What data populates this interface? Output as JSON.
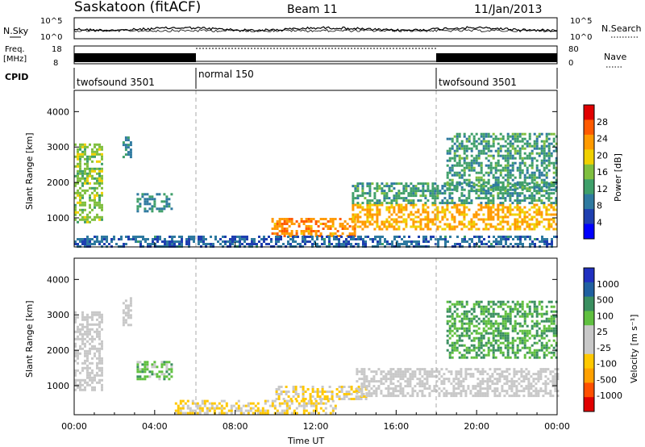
{
  "header": {
    "station": "Saskatoon (fitACF)",
    "beam": "Beam 11",
    "date": "11/Jan/2013"
  },
  "nsky_panel": {
    "left_label": "N.Sky",
    "right_label": "N.Search",
    "left_ticks": [
      "10^5",
      "10^0"
    ],
    "right_ticks": [
      "10^5",
      "10^0"
    ]
  },
  "freq_panel": {
    "left_label_line1": "Freq.",
    "left_label_line2": "[MHz]",
    "right_label": "Nave",
    "left_ticks": [
      "18",
      "8"
    ],
    "right_ticks": [
      "80",
      "0"
    ]
  },
  "cpid": {
    "label": "CPID",
    "segments": [
      {
        "name": "twofsound 3501",
        "start_h": 0,
        "end_h": 6
      },
      {
        "name": "normal 150",
        "start_h": 6,
        "end_h": 18
      },
      {
        "name": "twofsound 3501",
        "start_h": 18,
        "end_h": 24
      }
    ]
  },
  "power_panel": {
    "ylabel": "Slant Range [km]",
    "yticks": [
      "4000",
      "3000",
      "2000",
      "1000"
    ],
    "colorbar_label": "Power [dB]",
    "colorbar_ticks": [
      "28",
      "24",
      "20",
      "16",
      "12",
      "8",
      "4"
    ]
  },
  "velocity_panel": {
    "ylabel": "Slant Range [km]",
    "yticks": [
      "4000",
      "3000",
      "2000",
      "1000"
    ],
    "colorbar_label": "Velocity [m s⁻¹]",
    "colorbar_ticks": [
      "1000",
      "500",
      "100",
      "25",
      "-25",
      "-100",
      "-500",
      "-1000"
    ]
  },
  "xaxis": {
    "label": "Time UT",
    "ticks": [
      "00:00",
      "04:00",
      "08:00",
      "12:00",
      "16:00",
      "20:00",
      "00:00"
    ]
  },
  "colors": {
    "power_scale": [
      "#0000ff",
      "#1f3fb0",
      "#2f7aa0",
      "#3f9f6a",
      "#7fbf3f",
      "#f0d000",
      "#ff9a00",
      "#ff5a00",
      "#e00000"
    ],
    "velocity_scale": [
      "#e00000",
      "#ff5000",
      "#ffa000",
      "#ffc800",
      "#c8c8c8",
      "#c8c8c8",
      "#60c040",
      "#3a8f60",
      "#2060a0",
      "#2030c0"
    ]
  },
  "chart_data": [
    {
      "type": "heatmap",
      "title": "Power",
      "xlabel": "Time UT",
      "ylabel": "Slant Range [km]",
      "xlim": [
        0,
        24
      ],
      "ylim": [
        180,
        4600
      ],
      "zlabel": "Power [dB]",
      "zlim": [
        0,
        32
      ],
      "regions": [
        {
          "t0": 0.0,
          "t1": 1.4,
          "r0": 900,
          "r1": 3100,
          "level": 16
        },
        {
          "t0": 2.4,
          "t1": 2.8,
          "r0": 2700,
          "r1": 3300,
          "level": 10
        },
        {
          "t0": 3.1,
          "t1": 4.9,
          "r0": 1200,
          "r1": 1700,
          "level": 10
        },
        {
          "t0": 9.8,
          "t1": 14.0,
          "r0": 500,
          "r1": 1000,
          "level": 24
        },
        {
          "t0": 13.8,
          "t1": 24.0,
          "r0": 700,
          "r1": 1400,
          "level": 22
        },
        {
          "t0": 13.8,
          "t1": 24.0,
          "r0": 1400,
          "r1": 2000,
          "level": 12
        },
        {
          "t0": 18.5,
          "t1": 24.0,
          "r0": 1800,
          "r1": 3400,
          "level": 12
        },
        {
          "t0": 0.0,
          "t1": 24.0,
          "r0": 200,
          "r1": 500,
          "level": 8
        }
      ]
    },
    {
      "type": "heatmap",
      "title": "Velocity",
      "xlabel": "Time UT",
      "ylabel": "Slant Range [km]",
      "xlim": [
        0,
        24
      ],
      "ylim": [
        180,
        4600
      ],
      "zlabel": "Velocity [m s⁻¹]",
      "zlim": [
        -1000,
        1000
      ],
      "regions": [
        {
          "t0": 0.0,
          "t1": 1.4,
          "r0": 900,
          "r1": 3100,
          "level": 0
        },
        {
          "t0": 2.4,
          "t1": 2.8,
          "r0": 2700,
          "r1": 3500,
          "level": 0
        },
        {
          "t0": 3.1,
          "t1": 4.9,
          "r0": 1200,
          "r1": 1700,
          "level": 300
        },
        {
          "t0": 5.0,
          "t1": 13.0,
          "r0": 200,
          "r1": 600,
          "level": -200
        },
        {
          "t0": 10.0,
          "t1": 14.5,
          "r0": 600,
          "r1": 1000,
          "level": -200
        },
        {
          "t0": 14.0,
          "t1": 24.0,
          "r0": 700,
          "r1": 1500,
          "level": 0
        },
        {
          "t0": 18.5,
          "t1": 24.0,
          "r0": 1800,
          "r1": 3400,
          "level": 400
        }
      ]
    }
  ]
}
